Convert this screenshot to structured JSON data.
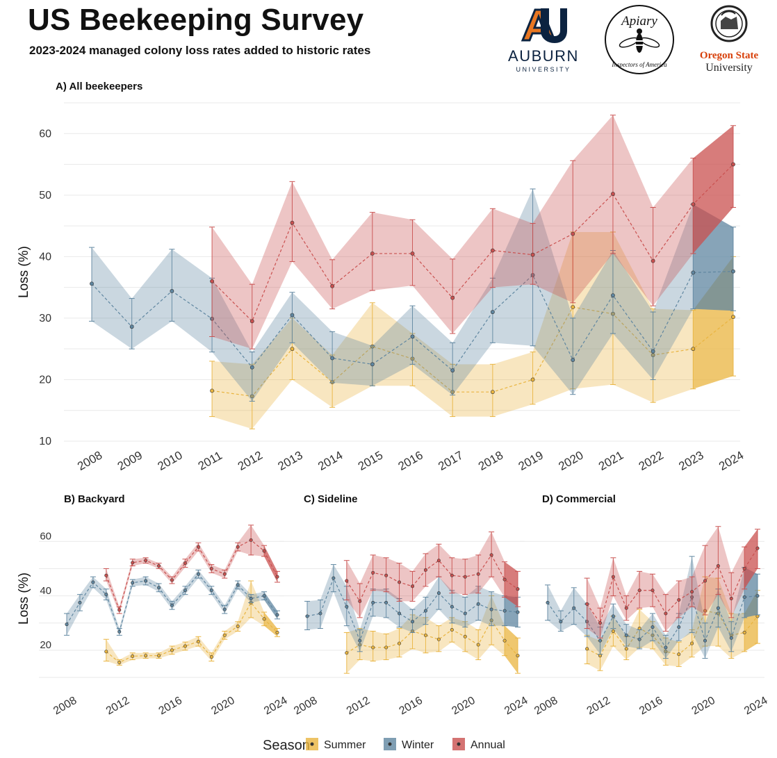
{
  "header": {
    "title": "US Beekeeping Survey",
    "subtitle": "2023-2024 managed colony loss rates added to historic rates"
  },
  "logos": {
    "auburn": {
      "name": "AUBURN",
      "sub": "UNIVERSITY",
      "icon": "auburn-au-logo"
    },
    "apiary": {
      "top": "Apiary",
      "bottom": "Inspectors of America",
      "icon": "bee-seal-logo"
    },
    "osu": {
      "name": "Oregon State",
      "sub": "University",
      "icon": "osu-seal-logo"
    }
  },
  "colors": {
    "Summer": "#E9B43F",
    "Winter": "#5F86A0",
    "Annual": "#C9504F",
    "grid": "#e9e9e9",
    "text": "#333333"
  },
  "legend": {
    "title": "Season",
    "items": [
      "Summer",
      "Winter",
      "Annual"
    ]
  },
  "chart_data": [
    {
      "type": "line",
      "title": "A) All beekeepers",
      "ylabel": "Loss (%)",
      "xlabel": "",
      "ylim": [
        10,
        65
      ],
      "yticks": [
        10,
        20,
        30,
        40,
        50,
        60
      ],
      "xticks": [
        2008,
        2009,
        2010,
        2011,
        2012,
        2013,
        2014,
        2015,
        2016,
        2017,
        2018,
        2019,
        2020,
        2021,
        2022,
        2023,
        2024
      ],
      "grid": true,
      "highlight_from": 2023,
      "series": [
        {
          "name": "Summer",
          "x": [
            2011,
            2012,
            2013,
            2014,
            2015,
            2016,
            2017,
            2018,
            2019,
            2020,
            2021,
            2022,
            2023,
            2024
          ],
          "y": [
            18.2,
            17.3,
            25.0,
            19.6,
            25.4,
            23.4,
            18.0,
            18.0,
            20.0,
            31.8,
            30.7,
            24.0,
            25.0,
            30.2
          ],
          "lo": [
            14.0,
            12.0,
            20.0,
            15.5,
            19.0,
            19.0,
            14.0,
            14.0,
            16.0,
            18.5,
            19.2,
            16.3,
            18.5,
            20.6
          ],
          "hi": [
            23.0,
            22.5,
            30.0,
            24.0,
            32.5,
            27.5,
            22.5,
            22.5,
            24.5,
            44.0,
            44.0,
            31.5,
            31.3,
            40.0
          ]
        },
        {
          "name": "Winter",
          "x": [
            2008,
            2009,
            2010,
            2011,
            2012,
            2013,
            2014,
            2015,
            2016,
            2017,
            2018,
            2019,
            2020,
            2021,
            2022,
            2023,
            2024
          ],
          "y": [
            35.6,
            28.6,
            34.4,
            29.9,
            22.0,
            30.5,
            23.5,
            22.5,
            27.0,
            21.5,
            31.0,
            37.0,
            23.2,
            33.7,
            24.6,
            37.4,
            37.6
          ],
          "lo": [
            29.5,
            25.0,
            29.5,
            24.5,
            16.5,
            26.0,
            19.5,
            19.0,
            22.5,
            17.5,
            26.0,
            25.5,
            17.6,
            27.5,
            20.0,
            31.5,
            31.2
          ],
          "hi": [
            41.5,
            33.2,
            41.2,
            36.5,
            24.5,
            34.2,
            27.8,
            25.5,
            32.0,
            26.0,
            36.5,
            51.0,
            30.0,
            41.0,
            31.0,
            48.5,
            44.8
          ]
        },
        {
          "name": "Annual",
          "x": [
            2011,
            2012,
            2013,
            2014,
            2015,
            2016,
            2017,
            2018,
            2019,
            2020,
            2021,
            2022,
            2023,
            2024
          ],
          "y": [
            36.0,
            29.5,
            45.5,
            35.2,
            40.5,
            40.5,
            33.3,
            41.0,
            40.3,
            43.7,
            50.2,
            39.3,
            48.5,
            55.0
          ],
          "lo": [
            27.0,
            25.0,
            39.2,
            31.5,
            34.5,
            35.3,
            27.5,
            35.0,
            35.5,
            32.5,
            40.5,
            32.0,
            40.5,
            48.0
          ],
          "hi": [
            44.8,
            35.5,
            52.2,
            39.5,
            47.2,
            46.0,
            39.6,
            47.8,
            45.4,
            55.6,
            63.0,
            48.0,
            56.0,
            61.3
          ]
        }
      ]
    },
    {
      "type": "line",
      "title": "B) Backyard",
      "ylabel": "Loss (%)",
      "xlabel": "",
      "ylim": [
        8,
        66
      ],
      "yticks": [
        20,
        40,
        60
      ],
      "xticks": [
        2008,
        2012,
        2016,
        2020,
        2024
      ],
      "grid": true,
      "highlight_from": 2023,
      "series": [
        {
          "name": "Summer",
          "x": [
            2011,
            2012,
            2013,
            2014,
            2015,
            2016,
            2017,
            2018,
            2019,
            2020,
            2021,
            2022,
            2023,
            2024
          ],
          "y": [
            17.5,
            13.5,
            15.8,
            16.0,
            16.0,
            18.0,
            19.5,
            21.2,
            15.5,
            23.5,
            26.8,
            35.5,
            29.5,
            24.5
          ],
          "lo": [
            14.0,
            12.5,
            14.5,
            15.0,
            15.0,
            16.5,
            18.0,
            19.5,
            14.0,
            22.0,
            25.0,
            30.0,
            27.0,
            23.0
          ],
          "hi": [
            22.0,
            14.5,
            17.0,
            17.0,
            17.0,
            19.5,
            21.0,
            23.0,
            17.0,
            25.0,
            28.5,
            43.5,
            32.0,
            26.0
          ]
        },
        {
          "name": "Winter",
          "x": [
            2008,
            2009,
            2010,
            2011,
            2012,
            2013,
            2014,
            2015,
            2016,
            2017,
            2018,
            2019,
            2020,
            2021,
            2022,
            2023,
            2024
          ],
          "y": [
            27.5,
            35.5,
            43.0,
            38.5,
            24.8,
            42.8,
            43.5,
            41.0,
            34.5,
            40.0,
            46.0,
            40.0,
            33.0,
            42.0,
            37.0,
            38.0,
            31.0
          ],
          "lo": [
            23.5,
            32.5,
            41.0,
            36.5,
            23.5,
            41.5,
            42.0,
            39.5,
            33.0,
            38.5,
            44.5,
            38.5,
            31.5,
            40.5,
            35.5,
            36.5,
            29.5
          ],
          "hi": [
            31.5,
            38.5,
            45.0,
            40.5,
            26.0,
            44.0,
            45.0,
            42.5,
            36.0,
            41.5,
            47.5,
            41.5,
            34.5,
            43.5,
            38.5,
            39.5,
            32.5
          ]
        },
        {
          "name": "Annual",
          "x": [
            2011,
            2012,
            2013,
            2014,
            2015,
            2016,
            2017,
            2018,
            2019,
            2020,
            2021,
            2022,
            2023,
            2024
          ],
          "y": [
            45.5,
            32.8,
            50.2,
            51.0,
            49.0,
            43.8,
            50.0,
            56.0,
            48.0,
            46.0,
            56.0,
            58.5,
            54.5,
            45.0
          ],
          "lo": [
            43.5,
            31.5,
            49.0,
            50.0,
            48.0,
            42.5,
            48.5,
            54.5,
            46.5,
            44.5,
            54.5,
            53.0,
            52.5,
            43.0
          ],
          "hi": [
            48.0,
            34.0,
            51.5,
            52.0,
            50.0,
            45.0,
            51.5,
            57.5,
            49.5,
            47.5,
            57.5,
            64.0,
            56.5,
            47.0
          ]
        }
      ]
    },
    {
      "type": "line",
      "title": "C) Sideline",
      "ylabel": "",
      "xlabel": "",
      "ylim": [
        8,
        66
      ],
      "yticks": [
        20,
        40,
        60
      ],
      "xticks": [
        2008,
        2012,
        2016,
        2020,
        2024
      ],
      "grid": true,
      "highlight_from": 2023,
      "series": [
        {
          "name": "Summer",
          "x": [
            2011,
            2012,
            2013,
            2014,
            2015,
            2016,
            2017,
            2018,
            2019,
            2020,
            2021,
            2022,
            2023,
            2024
          ],
          "y": [
            17.0,
            20.0,
            19.0,
            19.0,
            20.5,
            25.0,
            23.5,
            22.0,
            25.5,
            23.0,
            20.0,
            29.0,
            21.5,
            16.0
          ],
          "lo": [
            9.5,
            14.5,
            14.0,
            14.5,
            15.5,
            18.5,
            17.0,
            17.5,
            21.0,
            17.5,
            14.5,
            20.0,
            16.0,
            9.5
          ],
          "hi": [
            24.5,
            26.0,
            25.0,
            24.0,
            26.0,
            31.0,
            30.0,
            27.0,
            30.0,
            28.5,
            25.5,
            38.0,
            27.0,
            22.5
          ]
        },
        {
          "name": "Winter",
          "x": [
            2008,
            2009,
            2010,
            2011,
            2012,
            2013,
            2014,
            2015,
            2016,
            2017,
            2018,
            2019,
            2020,
            2021,
            2022,
            2023,
            2024
          ],
          "y": [
            30.5,
            31.5,
            44.5,
            34.0,
            21.5,
            35.5,
            35.5,
            31.5,
            28.5,
            32.5,
            39.0,
            34.0,
            31.5,
            35.0,
            33.0,
            32.5,
            32.0
          ],
          "lo": [
            25.5,
            26.0,
            39.5,
            27.0,
            17.5,
            30.5,
            30.0,
            26.5,
            24.5,
            27.5,
            33.0,
            28.0,
            26.5,
            29.0,
            27.0,
            27.0,
            26.5
          ],
          "hi": [
            36.0,
            36.5,
            49.5,
            41.5,
            25.5,
            40.5,
            40.5,
            37.0,
            33.0,
            37.5,
            45.0,
            40.0,
            37.5,
            41.5,
            39.5,
            38.0,
            37.5
          ]
        },
        {
          "name": "Annual",
          "x": [
            2011,
            2012,
            2013,
            2014,
            2015,
            2016,
            2017,
            2018,
            2019,
            2020,
            2021,
            2022,
            2023,
            2024
          ],
          "y": [
            43.5,
            36.0,
            46.5,
            45.5,
            43.0,
            41.5,
            47.5,
            51.0,
            45.5,
            45.0,
            46.0,
            53.0,
            44.0,
            40.5
          ],
          "lo": [
            36.5,
            30.0,
            40.0,
            39.5,
            36.0,
            36.0,
            41.5,
            45.0,
            39.0,
            38.5,
            39.0,
            45.0,
            37.5,
            34.0
          ],
          "hi": [
            51.0,
            42.5,
            53.0,
            52.0,
            50.0,
            47.0,
            53.5,
            57.0,
            52.0,
            51.5,
            53.0,
            61.5,
            50.5,
            47.0
          ]
        }
      ]
    },
    {
      "type": "line",
      "title": "D) Commercial",
      "ylabel": "",
      "xlabel": "",
      "ylim": [
        8,
        66
      ],
      "yticks": [
        20,
        40,
        60
      ],
      "xticks": [
        2008,
        2012,
        2016,
        2020,
        2024
      ],
      "grid": true,
      "highlight_from": 2023,
      "series": [
        {
          "name": "Summer",
          "x": [
            2011,
            2012,
            2013,
            2014,
            2015,
            2016,
            2017,
            2018,
            2019,
            2020,
            2021,
            2022,
            2023,
            2024
          ],
          "y": [
            18.5,
            16.0,
            25.0,
            18.5,
            26.0,
            23.5,
            17.5,
            16.5,
            20.5,
            32.5,
            31.5,
            23.5,
            24.5,
            30.5
          ],
          "lo": [
            13.0,
            10.5,
            19.5,
            14.5,
            19.0,
            18.5,
            12.5,
            12.0,
            15.5,
            19.5,
            19.5,
            15.0,
            17.5,
            20.5
          ],
          "hi": [
            23.5,
            21.5,
            30.5,
            23.0,
            33.0,
            28.5,
            22.5,
            21.0,
            25.5,
            45.0,
            44.5,
            31.5,
            31.5,
            40.0
          ]
        },
        {
          "name": "Winter",
          "x": [
            2008,
            2009,
            2010,
            2011,
            2012,
            2013,
            2014,
            2015,
            2016,
            2017,
            2018,
            2019,
            2020,
            2021,
            2022,
            2023,
            2024
          ],
          "y": [
            35.5,
            28.5,
            33.5,
            28.5,
            21.5,
            30.5,
            23.5,
            22.0,
            26.5,
            19.0,
            26.5,
            37.5,
            21.5,
            33.5,
            22.5,
            37.5,
            38.0
          ],
          "lo": [
            29.0,
            25.0,
            27.5,
            23.0,
            16.5,
            26.0,
            19.5,
            18.5,
            21.5,
            15.0,
            21.5,
            24.5,
            15.0,
            26.5,
            17.5,
            30.0,
            31.0
          ],
          "hi": [
            42.0,
            32.5,
            41.0,
            35.0,
            26.5,
            35.0,
            27.5,
            25.5,
            31.5,
            23.5,
            31.5,
            52.5,
            28.0,
            40.5,
            28.5,
            48.5,
            46.0
          ]
        },
        {
          "name": "Annual",
          "x": [
            2011,
            2012,
            2013,
            2014,
            2015,
            2016,
            2017,
            2018,
            2019,
            2020,
            2021,
            2022,
            2023,
            2024
          ],
          "y": [
            35.0,
            28.0,
            45.0,
            33.5,
            40.0,
            40.0,
            31.5,
            36.5,
            39.5,
            43.5,
            49.0,
            37.0,
            48.0,
            55.5
          ],
          "lo": [
            26.0,
            22.5,
            38.0,
            29.0,
            33.5,
            34.0,
            25.0,
            30.0,
            34.0,
            31.0,
            38.5,
            30.0,
            40.5,
            48.0
          ],
          "hi": [
            44.5,
            33.5,
            52.0,
            38.0,
            47.0,
            46.0,
            38.5,
            43.5,
            45.0,
            56.5,
            63.5,
            46.5,
            56.0,
            62.5
          ]
        }
      ]
    }
  ]
}
